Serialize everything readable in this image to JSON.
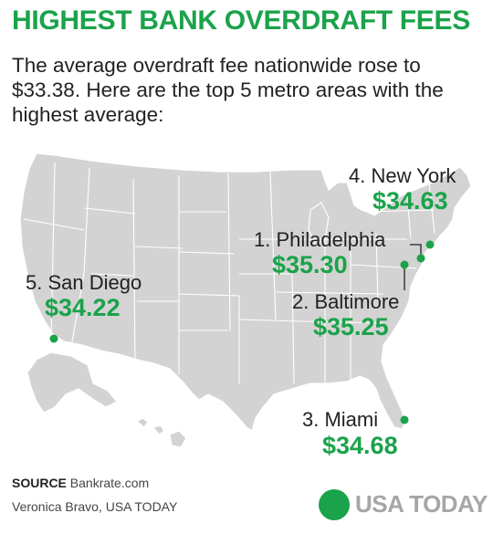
{
  "header": {
    "title": "HIGHEST BANK OVERDRAFT FEES",
    "subtitle": "The average overdraft fee nationwide rose to $33.38. Here are the top 5 metro areas with the highest average:"
  },
  "map": {
    "region": "Contiguous United States",
    "land_color": "#d3d3d3",
    "marker_color": "#1aa34a"
  },
  "cities": [
    {
      "label": "1. Philadelphia",
      "fee": "$35.30"
    },
    {
      "label": "2. Baltimore",
      "fee": "$35.25"
    },
    {
      "label": "3. Miami",
      "fee": "$34.68"
    },
    {
      "label": "4. New York",
      "fee": "$34.63"
    },
    {
      "label": "5. San Diego",
      "fee": "$34.22"
    }
  ],
  "footer": {
    "source_label": "SOURCE",
    "source_text": "Bankrate.com",
    "credit": "Veronica Bravo, USA TODAY",
    "logo_text": "USA TODAY"
  },
  "colors": {
    "accent": "#1aa34a",
    "text": "#222222",
    "logo_gray": "#a6a6a6"
  }
}
